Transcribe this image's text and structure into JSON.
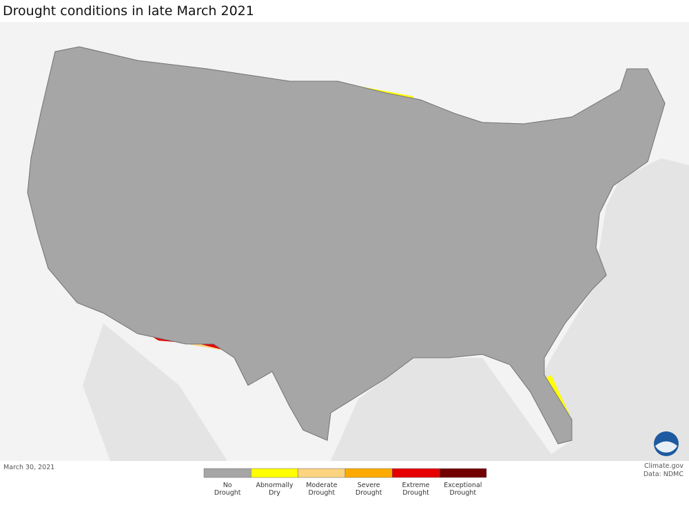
{
  "title": "Drought conditions in late March 2021",
  "date": "March 30, 2021",
  "credit": {
    "source": "Climate.gov",
    "data": "Data: NDMC"
  },
  "legend": {
    "items": [
      {
        "lines": [
          "No",
          "Drought"
        ],
        "color": "#a6a6a6"
      },
      {
        "lines": [
          "Abnormally",
          "Dry"
        ],
        "color": "#ffff00"
      },
      {
        "lines": [
          "Moderate",
          "Drought"
        ],
        "color": "#fcd37f"
      },
      {
        "lines": [
          "Severe",
          "Drought"
        ],
        "color": "#ffaa00"
      },
      {
        "lines": [
          "Extreme",
          "Drought"
        ],
        "color": "#e60000"
      },
      {
        "lines": [
          "Exceptional",
          "Drought"
        ],
        "color": "#730000"
      }
    ]
  }
}
